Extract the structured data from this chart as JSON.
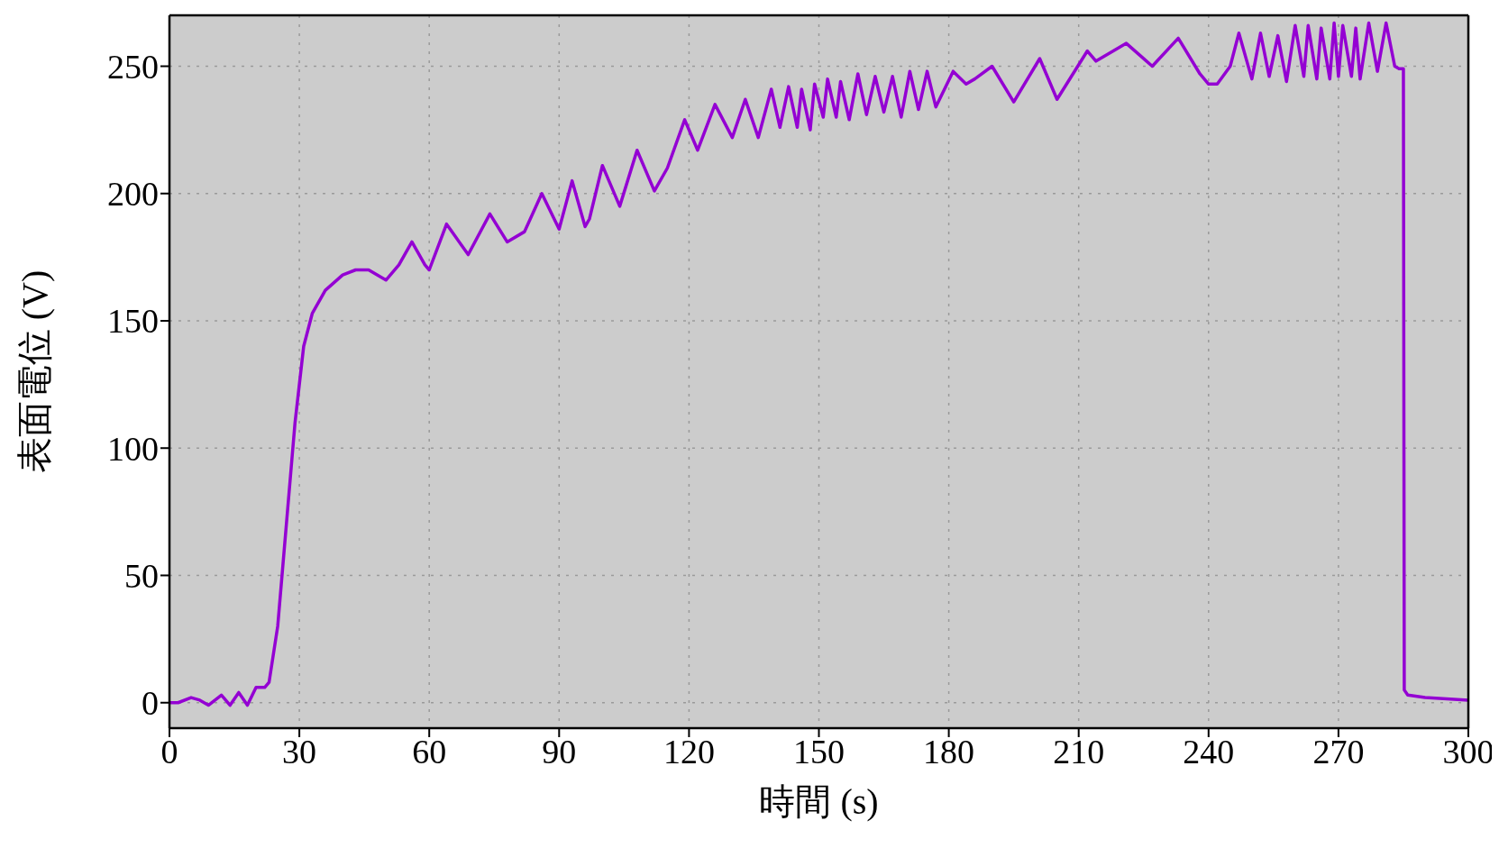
{
  "chart_data": {
    "type": "line",
    "xlabel": "時間 (s)",
    "ylabel": "表面電位 (V)",
    "xlim": [
      0,
      300
    ],
    "ylim": [
      -10,
      270
    ],
    "xticks": [
      0,
      30,
      60,
      90,
      120,
      150,
      180,
      210,
      240,
      270,
      300
    ],
    "yticks": [
      0,
      50,
      100,
      150,
      200,
      250
    ],
    "grid": true,
    "line_style": "solid",
    "series": [
      {
        "color": "#9400d3",
        "x": [
          0,
          2,
          5,
          7,
          9,
          12,
          14,
          16,
          18,
          20,
          22,
          23,
          25,
          27,
          29,
          31,
          33,
          36,
          40,
          43,
          46,
          50,
          53,
          56,
          59,
          60,
          64,
          69,
          74,
          78,
          82,
          86,
          90,
          93,
          96,
          97,
          100,
          104,
          108,
          112,
          115,
          119,
          122,
          126,
          130,
          133,
          136,
          139,
          141,
          143,
          145,
          146,
          148,
          149,
          151,
          152,
          154,
          155,
          157,
          159,
          161,
          163,
          165,
          167,
          169,
          171,
          173,
          175,
          177,
          181,
          184,
          186,
          190,
          195,
          201,
          205,
          212,
          214,
          218,
          221,
          227,
          233,
          238,
          240,
          242,
          245,
          247,
          250,
          252,
          254,
          256,
          258,
          260,
          262,
          263,
          265,
          266,
          268,
          269,
          270,
          271,
          273,
          274,
          275,
          277,
          279,
          281,
          283,
          284,
          285,
          285.2,
          286,
          290,
          300
        ],
        "values": [
          0,
          0,
          2,
          1,
          -1,
          3,
          -1,
          4,
          -1,
          6,
          6,
          8,
          30,
          70,
          110,
          140,
          153,
          162,
          168,
          170,
          170,
          166,
          172,
          181,
          172,
          170,
          188,
          176,
          192,
          181,
          185,
          200,
          186,
          205,
          187,
          190,
          211,
          195,
          217,
          201,
          210,
          229,
          217,
          235,
          222,
          237,
          222,
          241,
          226,
          242,
          226,
          241,
          225,
          243,
          230,
          245,
          230,
          244,
          229,
          247,
          231,
          246,
          232,
          246,
          230,
          248,
          233,
          248,
          234,
          248,
          243,
          245,
          250,
          236,
          253,
          237,
          256,
          252,
          256,
          259,
          250,
          261,
          247,
          243,
          243,
          250,
          263,
          245,
          263,
          246,
          262,
          244,
          266,
          246,
          266,
          245,
          265,
          245,
          267,
          246,
          266,
          246,
          265,
          245,
          267,
          248,
          267,
          250,
          249,
          249,
          5,
          3,
          2,
          1
        ]
      }
    ]
  }
}
